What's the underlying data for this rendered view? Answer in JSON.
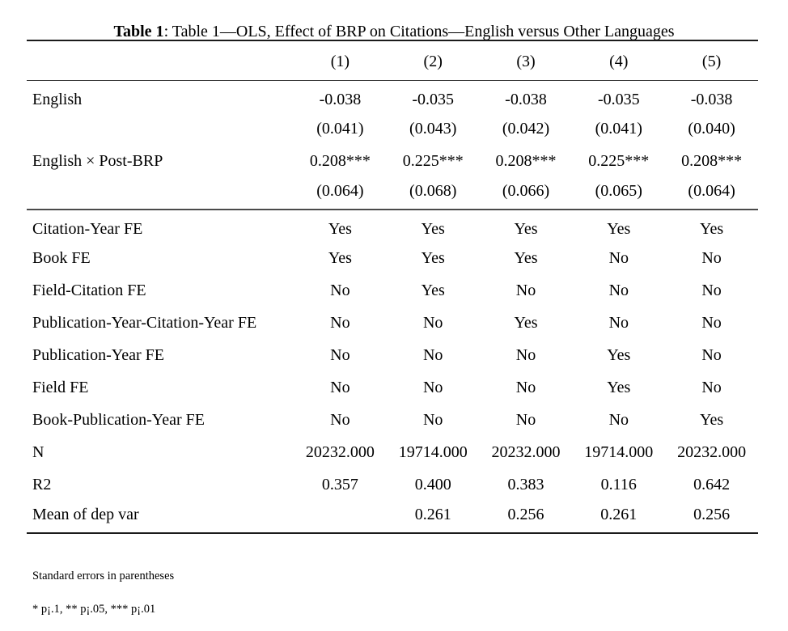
{
  "title": {
    "bold": "Table 1",
    "rest": ": Table 1—OLS, Effect of BRP on Citations—English versus Other Languages"
  },
  "columns": [
    "(1)",
    "(2)",
    "(3)",
    "(4)",
    "(5)"
  ],
  "coefficients": [
    {
      "label": "English",
      "values": [
        "-0.038",
        "-0.035",
        "-0.038",
        "-0.035",
        "-0.038"
      ]
    },
    {
      "label": "",
      "values": [
        "(0.041)",
        "(0.043)",
        "(0.042)",
        "(0.041)",
        "(0.040)"
      ]
    },
    {
      "label": "English × Post-BRP",
      "values": [
        "0.208***",
        "0.225***",
        "0.208***",
        "0.225***",
        "0.208***"
      ]
    },
    {
      "label": "",
      "values": [
        "(0.064)",
        "(0.068)",
        "(0.066)",
        "(0.065)",
        "(0.064)"
      ]
    }
  ],
  "stats": [
    {
      "label": "Citation-Year FE",
      "values": [
        "Yes",
        "Yes",
        "Yes",
        "Yes",
        "Yes"
      ]
    },
    {
      "label": "Book FE",
      "values": [
        "Yes",
        "Yes",
        "Yes",
        "No",
        "No"
      ]
    },
    {
      "label": "Field-Citation FE",
      "values": [
        "No",
        "Yes",
        "No",
        "No",
        "No"
      ]
    },
    {
      "label": "Publication-Year-Citation-Year FE",
      "values": [
        "No",
        "No",
        "Yes",
        "No",
        "No"
      ]
    },
    {
      "label": "Publication-Year FE",
      "values": [
        "No",
        "No",
        "No",
        "Yes",
        "No"
      ]
    },
    {
      "label": "Field FE",
      "values": [
        "No",
        "No",
        "No",
        "Yes",
        "No"
      ]
    },
    {
      "label": "Book-Publication-Year FE",
      "values": [
        "No",
        "No",
        "No",
        "No",
        "Yes"
      ]
    },
    {
      "label": "N",
      "values": [
        "20232.000",
        "19714.000",
        "20232.000",
        "19714.000",
        "20232.000"
      ]
    },
    {
      "label": "R2",
      "values": [
        "0.357",
        "0.400",
        "0.383",
        "0.116",
        "0.642"
      ]
    },
    {
      "label": "Mean of dep var",
      "values": [
        "",
        "0.261",
        "0.256",
        "0.261",
        "0.256"
      ]
    }
  ],
  "notes": [
    "Standard errors in parentheses",
    "* p¡.1, ** p¡.05, *** p¡.01"
  ]
}
